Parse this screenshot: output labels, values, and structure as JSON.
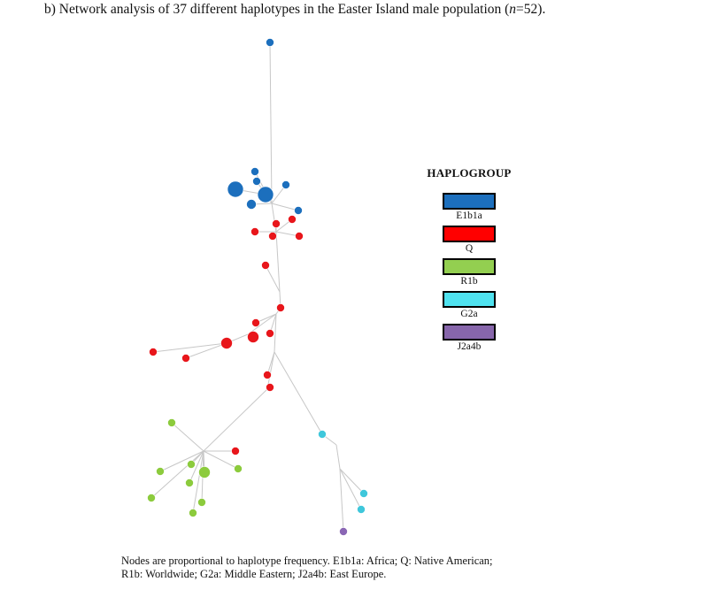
{
  "header": {
    "title_prefix": "b)  Network analysis of 37 different haplotypes in the Easter Island male population (",
    "title_n": "n",
    "title_suffix": "=52)."
  },
  "legend": {
    "title": "HAPLOGROUP",
    "items": [
      {
        "label": "E1b1a",
        "color": "#1c6fbd"
      },
      {
        "label": "Q",
        "color": "#ff0000"
      },
      {
        "label": "R1b",
        "color": "#93cf50"
      },
      {
        "label": "G2a",
        "color": "#4fe2ef"
      },
      {
        "label": "J2a4b",
        "color": "#8766ab"
      }
    ]
  },
  "caption": {
    "line1": "Nodes are proportional to haplotype frequency. E1b1a: Africa; Q: Native American;",
    "line2": "R1b: Worldwide; G2a: Middle Eastern; J2a4b: East Europe."
  },
  "colors": {
    "E1b1a": "#1c6fbd",
    "Q": "#e8161b",
    "R1b": "#8ccb3d",
    "G2a": "#3fc7db",
    "J2a4b": "#8a66b4",
    "edge": "#c7c7c7"
  }
}
